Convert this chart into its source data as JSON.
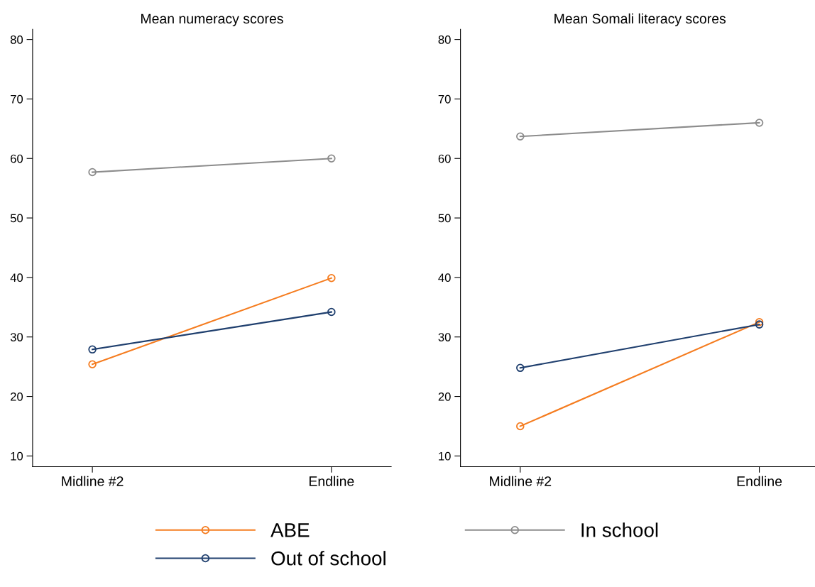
{
  "chart_data": [
    {
      "type": "line",
      "title": "Mean numeracy scores",
      "categories": [
        "Midline #2",
        "Endline"
      ],
      "ylim": [
        8.2,
        81.7
      ],
      "yticks": [
        10,
        20,
        30,
        40,
        50,
        60,
        70,
        80
      ],
      "grid": false,
      "marker": "circle",
      "line_style": "solid",
      "legend": "bottom",
      "series": [
        {
          "name": "ABE",
          "color": "#f57c1f",
          "values": [
            25.4,
            39.9
          ]
        },
        {
          "name": "In school",
          "color": "#8c8c8c",
          "values": [
            57.7,
            60.0
          ]
        },
        {
          "name": "Out of school",
          "color": "#1f3f6e",
          "values": [
            27.9,
            34.2
          ]
        }
      ]
    },
    {
      "type": "line",
      "title": "Mean Somali literacy scores",
      "categories": [
        "Midline #2",
        "Endline"
      ],
      "ylim": [
        8.2,
        81.7
      ],
      "yticks": [
        10,
        20,
        30,
        40,
        50,
        60,
        70,
        80
      ],
      "grid": false,
      "marker": "circle",
      "line_style": "solid",
      "legend": "bottom",
      "series": [
        {
          "name": "ABE",
          "color": "#f57c1f",
          "values": [
            15.0,
            32.5
          ]
        },
        {
          "name": "In school",
          "color": "#8c8c8c",
          "values": [
            63.7,
            66.0
          ]
        },
        {
          "name": "Out of school",
          "color": "#1f3f6e",
          "values": [
            24.8,
            32.1
          ]
        }
      ]
    }
  ]
}
